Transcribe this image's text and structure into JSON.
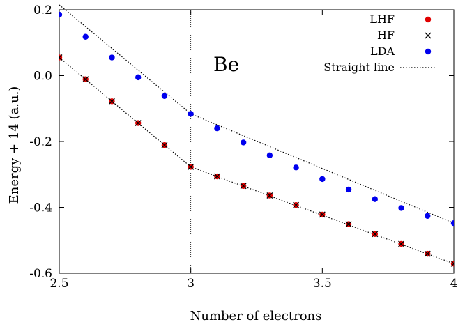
{
  "chart_data": {
    "type": "scatter",
    "xlabel": "Number of electrons",
    "ylabel": "Energy + 14 (a.u.)",
    "xlim": [
      2.5,
      4.0
    ],
    "ylim": [
      -0.6,
      0.2
    ],
    "xticks": [
      2.5,
      3.0,
      3.5,
      4.0
    ],
    "xtick_labels": [
      "2.5",
      "3",
      "3.5",
      "4"
    ],
    "yticks": [
      0.2,
      0.0,
      -0.2,
      -0.4,
      -0.6
    ],
    "ytick_labels": [
      "0.2",
      "0.0",
      "-0.2",
      "-0.4",
      "-0.6"
    ],
    "grid": false,
    "legend_position": "top-right",
    "annotation": "Be",
    "vline_x": 3.0,
    "x": [
      2.5,
      2.6,
      2.7,
      2.8,
      2.9,
      3.0,
      3.1,
      3.2,
      3.3,
      3.4,
      3.5,
      3.6,
      3.7,
      3.8,
      3.9,
      4.0
    ],
    "series": [
      {
        "name": "LHF",
        "marker": "circle",
        "color": "#e00000",
        "values": [
          0.055,
          -0.011,
          -0.078,
          -0.144,
          -0.211,
          -0.277,
          -0.306,
          -0.335,
          -0.364,
          -0.393,
          -0.422,
          -0.451,
          -0.481,
          -0.511,
          -0.541,
          -0.571
        ]
      },
      {
        "name": "HF",
        "marker": "cross",
        "color": "#000000",
        "values": [
          0.055,
          -0.011,
          -0.078,
          -0.144,
          -0.211,
          -0.277,
          -0.306,
          -0.335,
          -0.364,
          -0.393,
          -0.422,
          -0.451,
          -0.481,
          -0.511,
          -0.541,
          -0.571
        ]
      },
      {
        "name": "LDA",
        "marker": "circle",
        "color": "#0000ee",
        "values": [
          0.185,
          0.118,
          0.055,
          -0.005,
          -0.062,
          -0.116,
          -0.16,
          -0.203,
          -0.242,
          -0.279,
          -0.314,
          -0.346,
          -0.375,
          -0.402,
          -0.426,
          -0.448
        ]
      },
      {
        "name": "Straight line",
        "marker": "dotted-line",
        "color": "#000000",
        "segments": [
          {
            "x": [
              2.5,
              3.0,
              4.0
            ],
            "y": [
              0.055,
              -0.277,
              -0.571
            ]
          },
          {
            "x": [
              2.5,
              3.0,
              4.0
            ],
            "y": [
              0.215,
              -0.116,
              -0.448
            ]
          }
        ]
      }
    ]
  }
}
